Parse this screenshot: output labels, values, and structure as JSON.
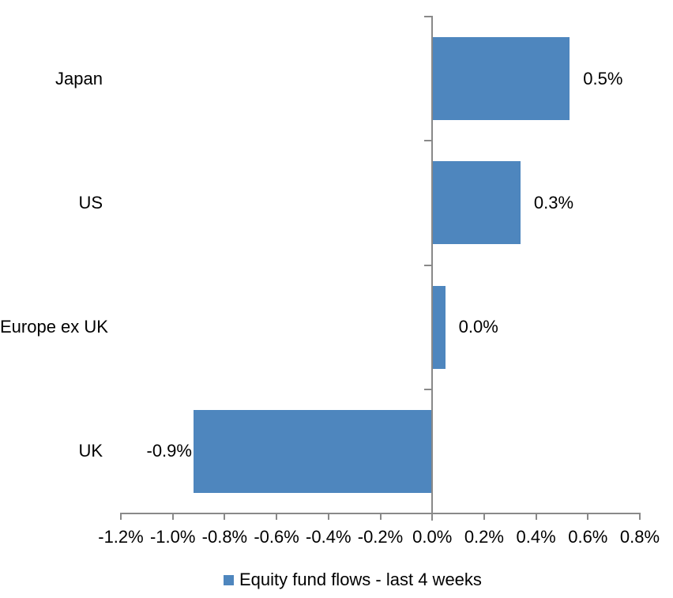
{
  "chart_data": {
    "type": "bar",
    "orientation": "horizontal",
    "title": "",
    "categories": [
      "Japan",
      "US",
      "Europe ex UK",
      "UK"
    ],
    "series": [
      {
        "name": "Equity fund flows - last 4 weeks",
        "values": [
          0.5,
          0.3,
          0.0,
          -0.9
        ],
        "values_precise": [
          0.53,
          0.34,
          0.05,
          -0.92
        ],
        "data_labels": [
          "0.5%",
          "0.3%",
          "0.0%",
          "-0.9%"
        ]
      }
    ],
    "xlabel": "",
    "ylabel": "",
    "xlim": [
      -1.2,
      0.8
    ],
    "x_tick_step": 0.2,
    "x_tick_labels": [
      "-1.2%",
      "-1.0%",
      "-0.8%",
      "-0.6%",
      "-0.4%",
      "-0.2%",
      "0.0%",
      "0.2%",
      "0.4%",
      "0.6%",
      "0.8%"
    ],
    "grid": false,
    "legend": {
      "position": "bottom",
      "entries": [
        "Equity fund flows - last 4 weeks"
      ]
    },
    "colors": {
      "bar": "#4E86BE",
      "axis": "#898989",
      "text": "#000000",
      "background": "#FFFFFF"
    }
  }
}
